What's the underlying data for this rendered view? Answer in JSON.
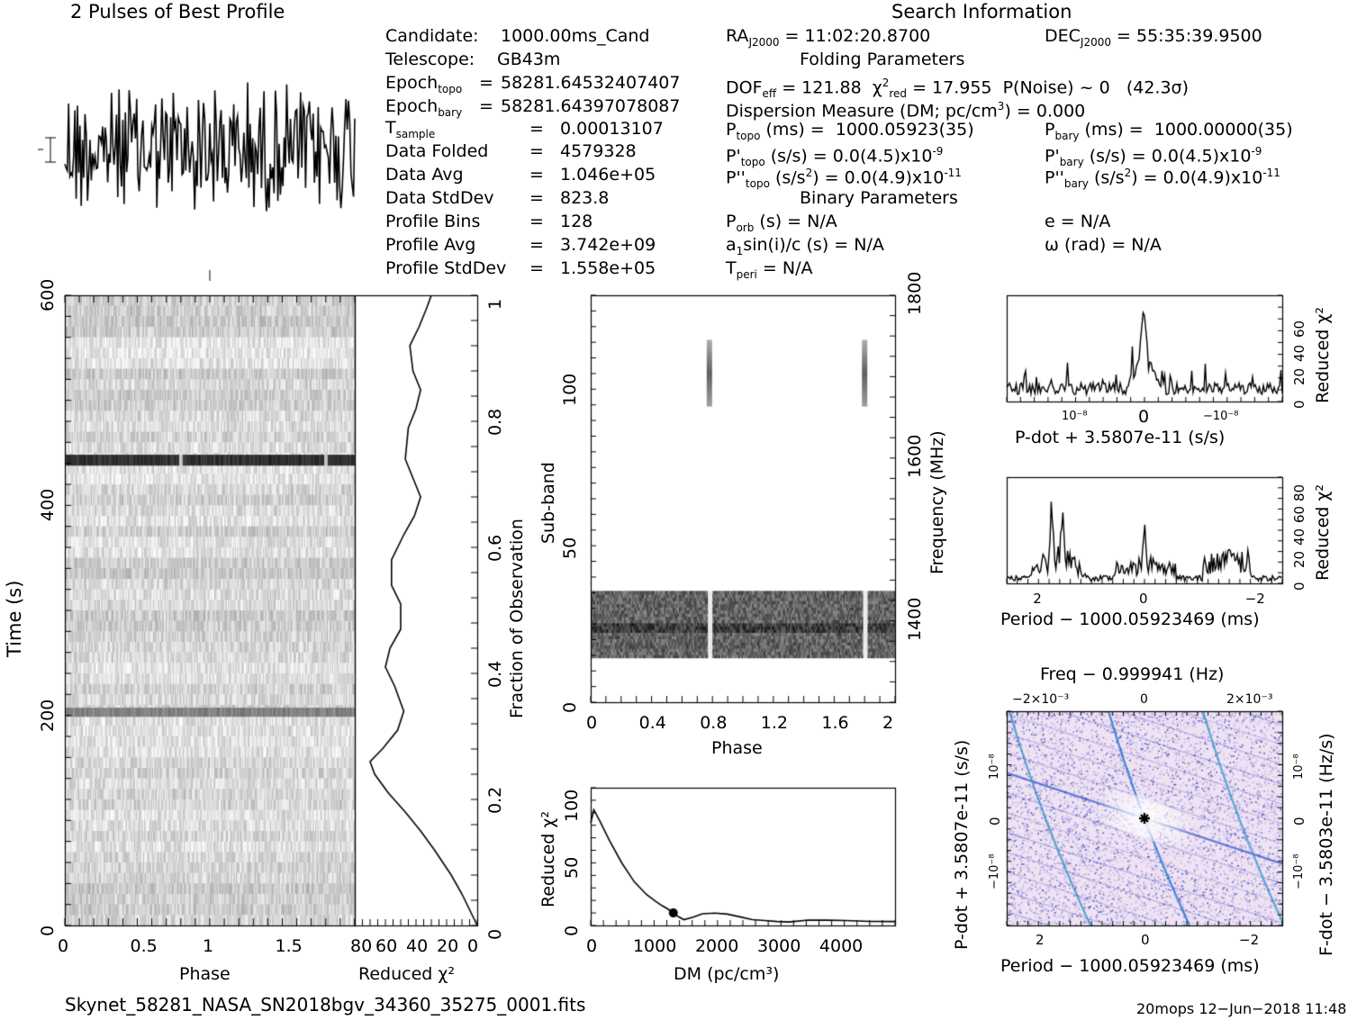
{
  "colors": {
    "ink": "#000000",
    "heat_low": "#f2e4f4",
    "heat_mid": "#9fa6e8",
    "heat_high": "#1e5fc8",
    "bg": "#ffffff"
  },
  "header": {
    "profile_title": "2 Pulses of Best Profile",
    "search_title": "Search Information",
    "folding_title": "Folding Parameters",
    "binary_title": "Binary Parameters"
  },
  "candidate_info": [
    {
      "label": "Candidate:",
      "value": "1000.00ms_Cand"
    },
    {
      "label": "Telescope:",
      "value": "GB43m"
    },
    {
      "label": "Epoch",
      "sub": "topo",
      "eq": "=",
      "value": "58281.64532407407"
    },
    {
      "label": "Epoch",
      "sub": "bary",
      "eq": "=",
      "value": "58281.64397078087"
    },
    {
      "label": "T",
      "sub": "sample",
      "eq": "=",
      "value": "0.00013107"
    },
    {
      "label": "Data Folded",
      "eq": "=",
      "value": "4579328"
    },
    {
      "label": "Data Avg",
      "eq": "=",
      "value": "1.046e+05"
    },
    {
      "label": "Data StdDev",
      "eq": "=",
      "value": "823.8"
    },
    {
      "label": "Profile Bins",
      "eq": "=",
      "value": "128"
    },
    {
      "label": "Profile Avg",
      "eq": "=",
      "value": "3.742e+09"
    },
    {
      "label": "Profile StdDev",
      "eq": "=",
      "value": "1.558e+05"
    }
  ],
  "search_info": {
    "ra": "11:02:20.8700",
    "dec": "55:35:39.9500",
    "dof_eff": "121.88",
    "chi2_red": "17.955",
    "p_noise": "~ 0",
    "sigma": "(42.3σ)",
    "dm_label": "Dispersion Measure (DM; pc/cm",
    "dm_value": "= 0.000",
    "p_topo": "1000.05923(35)",
    "p_bary": "1000.00000(35)",
    "pd_topo": "0.0(4.5)x10",
    "pd_topo_exp": "-9",
    "pd_bary": "0.0(4.5)x10",
    "pd_bary_exp": "-9",
    "pdd_topo": "0.0(4.9)x10",
    "pdd_topo_exp": "-11",
    "pdd_bary": "0.0(4.9)x10",
    "pdd_bary_exp": "-11",
    "p_orb": "N/A",
    "a1sini": "N/A",
    "t_peri": "N/A",
    "e": "N/A",
    "omega": "N/A"
  },
  "footer": {
    "filename": "Skynet_58281_NASA_SN2018bgv_34360_35275_0001.fits",
    "stamp": "20mops 12−Jun−2018 11:48"
  },
  "chart_data": [
    {
      "id": "time-phase",
      "type": "heatmap",
      "xlabel": "Phase",
      "ylabel": "Time (s)",
      "xlim": [
        0,
        2
      ],
      "ylim": [
        0,
        600
      ],
      "xticks": [
        "0",
        "0.5",
        "1",
        "1.5"
      ],
      "yticks": [
        "0",
        "200",
        "400",
        "600"
      ],
      "dark_rows_time_s": [
        443,
        203
      ]
    },
    {
      "id": "reduced-chi2-vs-fraction",
      "type": "line",
      "xlabel": "Reduced χ²",
      "ylabel": "Fraction of Observation",
      "xlim": [
        80,
        0
      ],
      "ylim": [
        0,
        1
      ],
      "xticks": [
        "80",
        "60",
        "40",
        "20",
        "0"
      ],
      "yticks": [
        "0",
        "0.2",
        "0.4",
        "0.6",
        "0.8",
        "1"
      ],
      "points": [
        [
          0,
          0
        ],
        [
          4,
          0.02
        ],
        [
          10,
          0.05
        ],
        [
          17,
          0.08
        ],
        [
          28,
          0.12
        ],
        [
          37,
          0.15
        ],
        [
          47,
          0.18
        ],
        [
          58,
          0.21
        ],
        [
          67,
          0.24
        ],
        [
          70,
          0.26
        ],
        [
          62,
          0.28
        ],
        [
          52,
          0.31
        ],
        [
          48,
          0.34
        ],
        [
          54,
          0.38
        ],
        [
          60,
          0.41
        ],
        [
          57,
          0.44
        ],
        [
          50,
          0.47
        ],
        [
          50,
          0.51
        ],
        [
          56,
          0.54
        ],
        [
          56,
          0.58
        ],
        [
          48,
          0.62
        ],
        [
          41,
          0.65
        ],
        [
          37,
          0.68
        ],
        [
          42,
          0.71
        ],
        [
          47,
          0.74
        ],
        [
          45,
          0.79
        ],
        [
          40,
          0.82
        ],
        [
          37,
          0.85
        ],
        [
          42,
          0.88
        ],
        [
          44,
          0.92
        ],
        [
          38,
          0.95
        ],
        [
          33,
          0.98
        ],
        [
          30,
          1.0
        ]
      ]
    },
    {
      "id": "subband-phase",
      "type": "heatmap",
      "xlabel": "Phase",
      "ylabel": "Sub-band",
      "y2label": "Frequency (MHz)",
      "xlim": [
        0,
        2
      ],
      "ylim": [
        0,
        128
      ],
      "y2lim": [
        1300,
        1800
      ],
      "xticks": [
        "0",
        "0.4",
        "0.8",
        "1.2",
        "1.6",
        "2"
      ],
      "yticks": [
        "0",
        "50",
        "100"
      ],
      "y2ticks": [
        "1400",
        "1600",
        "1800"
      ],
      "band_subbands": [
        14,
        35
      ],
      "gaps_phase": [
        0.78,
        1.8
      ],
      "high_marks_phase": [
        0.78,
        1.8
      ],
      "high_marks_subbands": [
        93,
        114
      ]
    },
    {
      "id": "dm-curve",
      "type": "line",
      "xlabel": "DM (pc/cm³)",
      "ylabel": "Reduced χ²",
      "xlim": [
        0,
        4900
      ],
      "ylim": [
        0,
        100
      ],
      "xticks": [
        "0",
        "1000",
        "2000",
        "3000",
        "4000"
      ],
      "yticks": [
        "0",
        "50",
        "100"
      ],
      "points": [
        [
          0,
          82
        ],
        [
          50,
          92
        ],
        [
          150,
          83
        ],
        [
          300,
          68
        ],
        [
          500,
          50
        ],
        [
          700,
          35
        ],
        [
          900,
          25
        ],
        [
          1050,
          19
        ],
        [
          1150,
          16
        ],
        [
          1250,
          13
        ],
        [
          1330,
          10
        ],
        [
          1420,
          7
        ],
        [
          1500,
          5
        ],
        [
          1650,
          7
        ],
        [
          1800,
          9
        ],
        [
          2000,
          10
        ],
        [
          2200,
          9
        ],
        [
          2400,
          7
        ],
        [
          2600,
          5
        ],
        [
          2800,
          4
        ],
        [
          3000,
          3
        ],
        [
          3200,
          3
        ],
        [
          3500,
          4
        ],
        [
          3800,
          4
        ],
        [
          4100,
          4
        ],
        [
          4500,
          3
        ],
        [
          4900,
          3
        ]
      ],
      "marker": [
        1330,
        10
      ]
    },
    {
      "id": "pdot-curve",
      "type": "line",
      "xlabel": "P-dot + 3.5807e-11 (s/s)",
      "ylabel": "Reduced χ²",
      "xlim": [
        1.5e-08,
        -1.5e-08
      ],
      "ylim": [
        0,
        90
      ],
      "xticks": [
        "10⁻⁸",
        "0",
        "−10⁻⁸"
      ],
      "yticks": [
        "0",
        "20",
        "40",
        "60"
      ],
      "peak": [
        0,
        80
      ]
    },
    {
      "id": "period-curve",
      "type": "line",
      "xlabel": "Period − 1000.05923469 (ms)",
      "ylabel": "Reduced χ²",
      "xlim": [
        2.6,
        -2.6
      ],
      "ylim": [
        0,
        95
      ],
      "xticks": [
        "2",
        "0",
        "−2"
      ],
      "yticks": [
        "0",
        "20",
        "40",
        "60",
        "80"
      ],
      "peaks": [
        [
          1.75,
          85
        ],
        [
          1.55,
          82
        ],
        [
          0,
          58
        ],
        [
          -1.6,
          38
        ]
      ]
    },
    {
      "id": "period-pdot-plane",
      "type": "heatmap",
      "title": "Freq − 0.999941 (Hz)",
      "xlabel": "Period − 1000.05923469 (ms)",
      "ylabel": "P-dot + 3.5807e-11 (s/s)",
      "y2label": "F-dot − 3.5803e-11 (Hz/s)",
      "xticks": [
        "2",
        "0",
        "−2"
      ],
      "topticks": [
        "−2×10⁻³",
        "0",
        "2×10⁻³"
      ],
      "yticks": [
        "10⁻⁸",
        "0",
        "−10⁻⁸"
      ],
      "y2ticks": [
        "10⁻⁸",
        "0",
        "−10⁻⁸"
      ],
      "best": [
        0,
        0
      ]
    }
  ]
}
